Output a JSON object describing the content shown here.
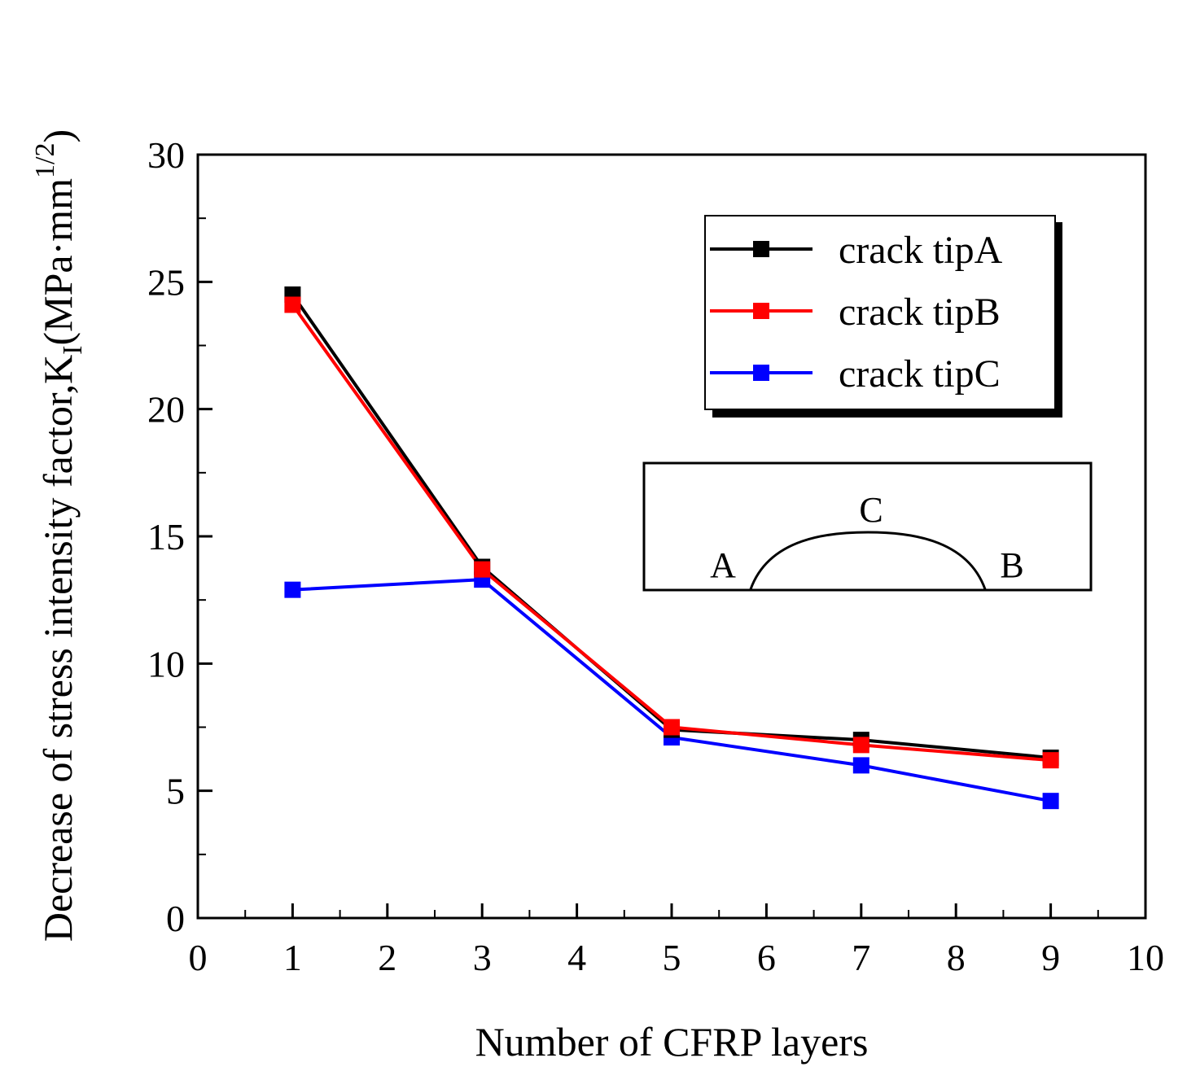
{
  "chart_data": {
    "type": "line",
    "xlabel": "Number of CFRP layers",
    "ylabel": {
      "prefix": "Decrease  of  stress  intensity  factor,K",
      "subscript": "I",
      "unit_open": "(MPa·mm",
      "superscript": "1/2",
      "unit_close": ")"
    },
    "xlim": [
      0,
      10
    ],
    "ylim": [
      0,
      30
    ],
    "xticks": [
      0,
      1,
      2,
      3,
      4,
      5,
      6,
      7,
      8,
      9,
      10
    ],
    "yticks": [
      0,
      5,
      10,
      15,
      20,
      25,
      30
    ],
    "grid": false,
    "legend_position": "top-right",
    "x": [
      1,
      3,
      5,
      7,
      9
    ],
    "series": [
      {
        "name": "crack tipA",
        "color": "#000000",
        "values": [
          24.5,
          13.8,
          7.4,
          7.0,
          6.3
        ]
      },
      {
        "name": "crack tipB",
        "color": "#ff0000",
        "values": [
          24.1,
          13.7,
          7.5,
          6.8,
          6.2
        ]
      },
      {
        "name": "crack tipC",
        "color": "#0000ff",
        "values": [
          12.9,
          13.3,
          7.1,
          6.0,
          4.6
        ]
      }
    ],
    "inset": {
      "labels": {
        "left": "A",
        "top": "C",
        "right": "B"
      }
    }
  }
}
